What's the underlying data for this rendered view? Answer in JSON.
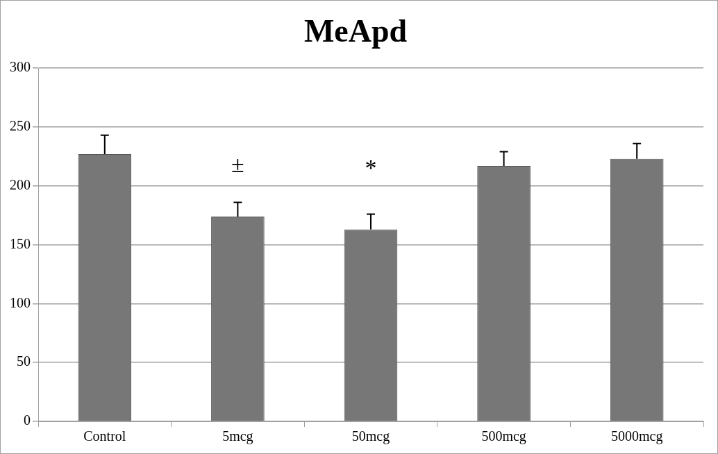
{
  "chart_data": {
    "type": "bar",
    "title": "MeApd",
    "categories": [
      "Control",
      "5mcg",
      "50mcg",
      "500mcg",
      "5000mcg"
    ],
    "values": [
      227,
      174,
      163,
      217,
      223
    ],
    "errors": [
      [
        227,
        243
      ],
      [
        174,
        186
      ],
      [
        163,
        176
      ],
      [
        217,
        229
      ],
      [
        223,
        236
      ]
    ],
    "color": "#777777",
    "ylim": [
      0,
      300
    ],
    "yticks": [
      0,
      50,
      100,
      150,
      200,
      250,
      300
    ],
    "grid": "y",
    "annotations": [
      "±",
      "*"
    ]
  }
}
